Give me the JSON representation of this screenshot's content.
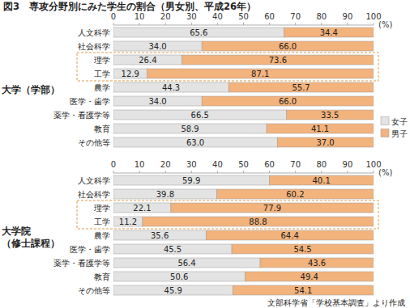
{
  "chart_data": [
    {
      "type": "bar",
      "orientation": "horizontal",
      "stacked": true,
      "data_labels": true,
      "grid": false,
      "legend": "right",
      "title": "図3　専攻分野別にみた学生の割合（男女別、平成26年）",
      "ylabel": "大学（学部）",
      "xlabel": "(%)",
      "categories": [
        "人文科学",
        "社会科学",
        "理学",
        "工学",
        "農学",
        "医学・歯学",
        "薬学・看護学等",
        "教育",
        "その他等"
      ],
      "xlim": [
        0,
        100
      ],
      "xticks": [
        0,
        10,
        20,
        30,
        40,
        50,
        60,
        70,
        80,
        90,
        100
      ],
      "series": [
        {
          "name": "女子",
          "color": "#e3e3e3",
          "values": [
            65.6,
            34.0,
            26.4,
            12.9,
            44.3,
            34.0,
            66.5,
            58.9,
            63.0
          ],
          "value_labels": [
            "65.6",
            "34.0",
            "26.4",
            "12.9",
            "44.3",
            "34.0",
            "66.5",
            "58.9",
            "63.0"
          ]
        },
        {
          "name": "男子",
          "color": "#f3b37c",
          "values": [
            34.4,
            66.0,
            73.6,
            87.1,
            55.7,
            66.0,
            33.5,
            41.1,
            37.0
          ],
          "value_labels": [
            "34.4",
            "66.0",
            "73.6",
            "87.1",
            "55.7",
            "66.0",
            "33.5",
            "41.1",
            "37.0"
          ]
        }
      ]
    },
    {
      "type": "bar",
      "orientation": "horizontal",
      "stacked": true,
      "data_labels": true,
      "grid": false,
      "ylabel": "大学院（修士課程）",
      "xlabel": "(%)",
      "annotations": [
        "文部科学省「学校基本調査」より作成"
      ],
      "categories": [
        "人文科学",
        "社会科学",
        "理学",
        "工学",
        "農学",
        "医学・歯学",
        "薬学・看護学等",
        "教育",
        "その他等"
      ],
      "xlim": [
        0,
        100
      ],
      "xticks": [
        0,
        10,
        20,
        30,
        40,
        50,
        60,
        70,
        80,
        90,
        100
      ],
      "series": [
        {
          "color": "#e3e3e3",
          "values": [
            59.9,
            39.8,
            22.1,
            11.2,
            35.6,
            45.5,
            56.4,
            50.6,
            45.9
          ],
          "value_labels": [
            "59.9",
            "39.8",
            "22.1",
            "11.2",
            "35.6",
            "45.5",
            "56.4",
            "50.6",
            "45.9"
          ]
        },
        {
          "color": "#f3b37c",
          "values": [
            40.1,
            60.2,
            77.9,
            88.8,
            64.4,
            54.5,
            43.6,
            49.4,
            54.1
          ],
          "value_labels": [
            "40.1",
            "60.2",
            "77.9",
            "88.8",
            "64.4",
            "54.5",
            "43.6",
            "49.4",
            "54.1"
          ]
        }
      ]
    }
  ]
}
